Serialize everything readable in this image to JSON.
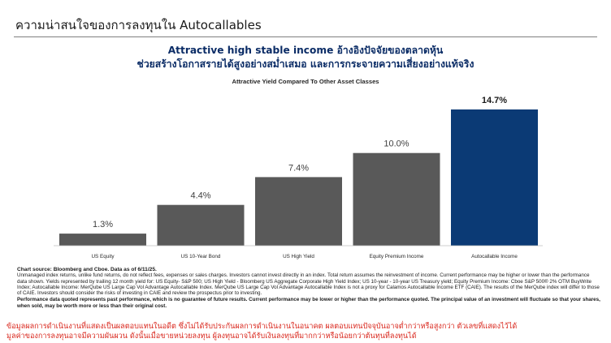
{
  "slide": {
    "title": "ความน่าสนใจของการลงทุนใน Autocallables"
  },
  "headline": {
    "line1": "Attractive high stable income อ้างอิงปัจจัยของตลาดหุ้น",
    "line2": "ช่วยสร้างโอกาสรายได้สูงอย่างสม่ำเสมอ และการกระจายความเสี่ยงอย่างแท้จริง"
  },
  "chart_data": {
    "type": "bar",
    "title": "Attractive Yield Compared To Other Asset Classes",
    "categories": [
      "US Equity",
      "US 10-Year Bond",
      "US High Yield",
      "Equity Premium Income",
      "Autocallable Income"
    ],
    "values": [
      1.3,
      4.4,
      7.4,
      10.0,
      14.7
    ],
    "value_labels": [
      "1.3%",
      "4.4%",
      "7.4%",
      "10.0%",
      "14.7%"
    ],
    "unit": "%",
    "ylim": [
      0,
      15.4
    ],
    "highlight_index": 4,
    "grid": false,
    "legend": "none",
    "colors": {
      "bar": "#595959",
      "highlight": "#0b3a75",
      "label": "#404040",
      "highlight_label": "#1a1a1a"
    }
  },
  "notes": {
    "source": "Chart source: Bloomberg and Cboe. Data as of 6/11/25.",
    "body": "Unmanaged index returns, unlike fund returns, do not reflect fees, expenses or sales charges. Investors cannot invest directly in an index. Total return assumes the reinvestment of income. Current performance may be higher or lower than the performance data shown. Yields represented by trailing 12 month yield for: US Equity- S&P 500; US High Yield - Bloomberg US Aggregate Corporate High Yield Index; US 10-year - 10-year US Treasury yield; Equity Premium Income: Cboe S&P 500® 2% OTM BuyWrite Index; Autocallable Income: MerQube US Large Cap Vol Advantage Autocallable Index. MerQube US Large Cap Vol Advantage Autocallable Index is not a proxy for Calamos Autocallable Income ETF (CAIE). The results of the MerQube index will differ to those of CAIE. Investors should consider the risks of investing in CAIE and review the prospectus prior to investing.",
    "performance": "Performance data quoted represents past performance, which is no guarantee of future results. Current performance may be lower or higher than the performance quoted. The principal value of an investment will fluctuate so that your shares, when sold, may be worth more or less than their original cost."
  },
  "disclaimer": {
    "line1": "ข้อมูลผลการดำเนินงานที่แสดงเป็นผลตอบแทนในอดีต ซึ่งไม่ได้รับประกันผลการดำเนินงานในอนาคต ผลตอบแทนปัจจุบันอาจต่ำกว่าหรือสูงกว่า ตัวเลขที่แสดงไว้ได้",
    "line2": "มูลค่าของการลงทุนอาจมีความผันผวน ดังนั้นเมื่อขายหน่วยลงทุน ผู้ลงทุนอาจได้รับเงินลงทุนที่มากกว่าหรือน้อยกว่าต้นทุนที่ลงทุนได้"
  }
}
